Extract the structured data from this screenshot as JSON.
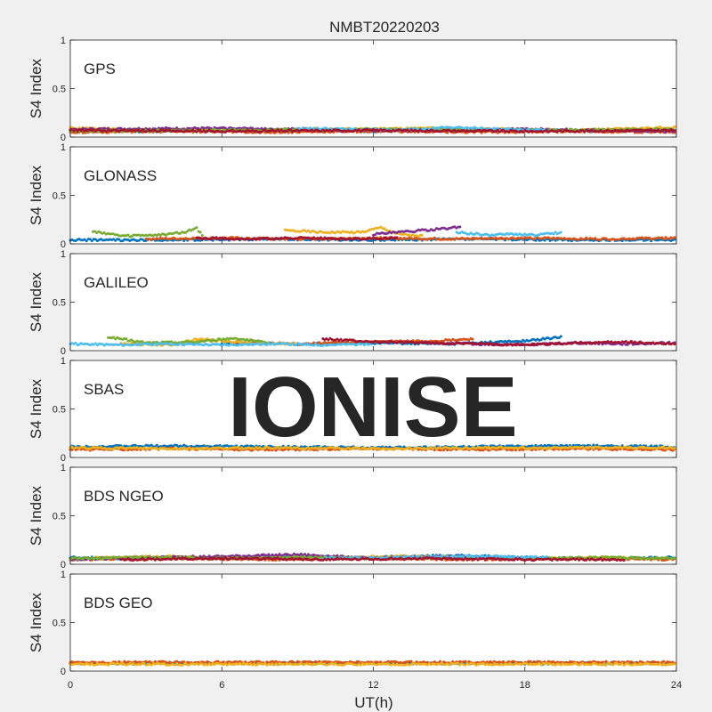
{
  "chart_data": {
    "type": "scatter",
    "title": "NMBT20220203",
    "xlabel": "UT(h)",
    "xlim": [
      0,
      24
    ],
    "xticks": [
      "0",
      "6",
      "12",
      "18",
      "24"
    ],
    "ylabel": "S4 Index",
    "ylim": [
      0,
      1
    ],
    "yticks": [
      "0",
      "0.5",
      "1"
    ],
    "watermark": "IONISE",
    "colors": [
      "#0072BD",
      "#D95319",
      "#EDB120",
      "#7E2F8E",
      "#77AC30",
      "#4DBEEE",
      "#A2142F"
    ],
    "panels": [
      {
        "name": "GPS",
        "series": [
          {
            "x": [
              0,
              3,
              6,
              9,
              12,
              15,
              18,
              21,
              24
            ],
            "y": [
              0.07,
              0.06,
              0.08,
              0.07,
              0.06,
              0.08,
              0.07,
              0.06,
              0.07
            ]
          },
          {
            "x": [
              0,
              4,
              8,
              12,
              16,
              20,
              24
            ],
            "y": [
              0.05,
              0.06,
              0.05,
              0.06,
              0.05,
              0.06,
              0.05
            ]
          },
          {
            "x": [
              0,
              5,
              10,
              15,
              20,
              24
            ],
            "y": [
              0.09,
              0.07,
              0.08,
              0.09,
              0.07,
              0.1
            ]
          },
          {
            "x": [
              0,
              6,
              12,
              18,
              24
            ],
            "y": [
              0.08,
              0.09,
              0.07,
              0.08,
              0.06
            ]
          },
          {
            "x": [
              0,
              6,
              12,
              18,
              24
            ],
            "y": [
              0.06,
              0.07,
              0.08,
              0.07,
              0.08
            ]
          },
          {
            "x": [
              9,
              11,
              13,
              15,
              17,
              19
            ],
            "y": [
              0.09,
              0.08,
              0.07,
              0.1,
              0.08,
              0.07
            ]
          },
          {
            "x": [
              0,
              6,
              12,
              18,
              24
            ],
            "y": [
              0.07,
              0.06,
              0.07,
              0.06,
              0.07
            ]
          }
        ]
      },
      {
        "name": "GLONASS",
        "series": [
          {
            "x": [
              0,
              4,
              8,
              12,
              16,
              20,
              24
            ],
            "y": [
              0.04,
              0.04,
              0.05,
              0.04,
              0.05,
              0.04,
              0.04
            ]
          },
          {
            "x": [
              3,
              6,
              9,
              12,
              15,
              18,
              21,
              24
            ],
            "y": [
              0.05,
              0.06,
              0.05,
              0.06,
              0.05,
              0.06,
              0.05,
              0.06
            ]
          },
          {
            "x": [
              8.5,
              10,
              11.5,
              12.3,
              13,
              14
            ],
            "y": [
              0.14,
              0.12,
              0.12,
              0.17,
              0.1,
              0.08
            ]
          },
          {
            "x": [
              12,
              13,
              14,
              15,
              15.5
            ],
            "y": [
              0.1,
              0.12,
              0.14,
              0.16,
              0.18
            ]
          },
          {
            "x": [
              0.9,
              2,
              3.5,
              4.5,
              5,
              5.3
            ],
            "y": [
              0.13,
              0.08,
              0.09,
              0.12,
              0.16,
              0.06
            ]
          },
          {
            "x": [
              15.3,
              16.5,
              17.5,
              18.5,
              19.5
            ],
            "y": [
              0.12,
              0.09,
              0.1,
              0.09,
              0.12
            ]
          },
          {
            "x": [
              5,
              7,
              9,
              11,
              13
            ],
            "y": [
              0.06,
              0.05,
              0.06,
              0.05,
              0.06
            ]
          }
        ]
      },
      {
        "name": "GALILEO",
        "series": [
          {
            "x": [
              6,
              9,
              12,
              15,
              18,
              19.5
            ],
            "y": [
              0.08,
              0.07,
              0.08,
              0.07,
              0.1,
              0.14
            ]
          },
          {
            "x": [
              6.5,
              9,
              11.5,
              14.5,
              16
            ],
            "y": [
              0.08,
              0.07,
              0.09,
              0.1,
              0.12
            ]
          },
          {
            "x": [
              2,
              4,
              5,
              7,
              9
            ],
            "y": [
              0.07,
              0.06,
              0.12,
              0.08,
              0.07
            ]
          },
          {
            "x": [
              14,
              16,
              18,
              20,
              22,
              24
            ],
            "y": [
              0.08,
              0.07,
              0.06,
              0.08,
              0.07,
              0.08
            ]
          },
          {
            "x": [
              1.5,
              3,
              5,
              6.5,
              8
            ],
            "y": [
              0.14,
              0.08,
              0.09,
              0.13,
              0.07
            ]
          },
          {
            "x": [
              0,
              2,
              4,
              6,
              8,
              10,
              12
            ],
            "y": [
              0.07,
              0.06,
              0.07,
              0.06,
              0.07,
              0.06,
              0.07
            ]
          },
          {
            "x": [
              10,
              12,
              14,
              16,
              18,
              20,
              22,
              24
            ],
            "y": [
              0.12,
              0.09,
              0.08,
              0.07,
              0.06,
              0.08,
              0.09,
              0.07
            ]
          }
        ]
      },
      {
        "name": "SBAS",
        "series": [
          {
            "x": [
              0,
              4,
              8,
              12,
              16,
              20,
              24
            ],
            "y": [
              0.11,
              0.12,
              0.11,
              0.1,
              0.11,
              0.12,
              0.11
            ]
          },
          {
            "x": [
              0,
              4,
              8,
              12,
              16,
              20,
              24
            ],
            "y": [
              0.08,
              0.09,
              0.08,
              0.09,
              0.08,
              0.09,
              0.08
            ]
          },
          {
            "x": [
              0,
              4,
              8,
              12,
              16,
              20,
              24
            ],
            "y": [
              0.1,
              0.09,
              0.1,
              0.09,
              0.1,
              0.1,
              0.1
            ]
          }
        ]
      },
      {
        "name": "BDS NGEO",
        "series": [
          {
            "x": [
              0,
              3,
              6,
              9,
              12,
              15,
              18,
              21,
              24
            ],
            "y": [
              0.07,
              0.06,
              0.07,
              0.08,
              0.07,
              0.09,
              0.07,
              0.06,
              0.07
            ]
          },
          {
            "x": [
              0,
              4,
              8,
              12,
              16,
              20,
              24
            ],
            "y": [
              0.05,
              0.06,
              0.05,
              0.06,
              0.05,
              0.06,
              0.05
            ]
          },
          {
            "x": [
              1,
              4,
              7,
              10,
              13,
              16,
              19,
              22
            ],
            "y": [
              0.07,
              0.08,
              0.06,
              0.07,
              0.08,
              0.07,
              0.06,
              0.07
            ]
          },
          {
            "x": [
              0,
              3,
              6,
              9,
              12,
              15,
              18
            ],
            "y": [
              0.05,
              0.07,
              0.08,
              0.1,
              0.06,
              0.08,
              0.06
            ]
          },
          {
            "x": [
              0,
              3,
              6,
              9,
              12,
              15,
              18,
              21,
              24
            ],
            "y": [
              0.06,
              0.07,
              0.06,
              0.07,
              0.06,
              0.07,
              0.06,
              0.07,
              0.06
            ]
          },
          {
            "x": [
              10,
              13,
              16,
              19
            ],
            "y": [
              0.06,
              0.07,
              0.08,
              0.07
            ]
          },
          {
            "x": [
              2,
              6,
              10,
              14,
              18,
              22
            ],
            "y": [
              0.05,
              0.06,
              0.05,
              0.06,
              0.05,
              0.05
            ]
          }
        ]
      },
      {
        "name": "BDS GEO",
        "series": [
          {
            "x": [
              0,
              6,
              12,
              18,
              24
            ],
            "y": [
              0.08,
              0.08,
              0.08,
              0.08,
              0.08
            ]
          },
          {
            "x": [
              0,
              6,
              12,
              18,
              24
            ],
            "y": [
              0.09,
              0.09,
              0.09,
              0.09,
              0.09
            ]
          },
          {
            "x": [
              0,
              6,
              12,
              18,
              24
            ],
            "y": [
              0.07,
              0.07,
              0.07,
              0.07,
              0.07
            ]
          }
        ]
      }
    ]
  }
}
